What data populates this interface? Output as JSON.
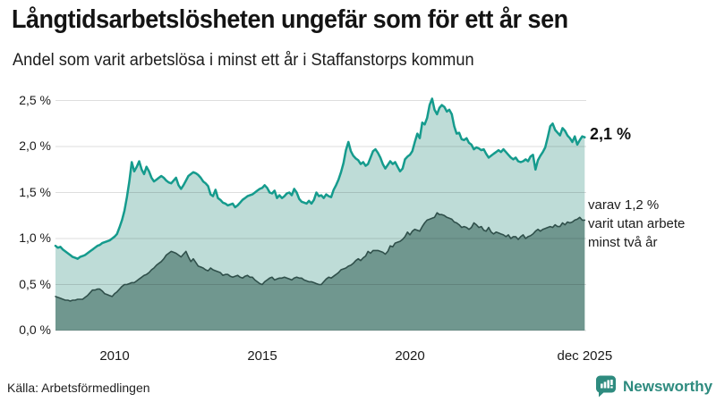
{
  "header": {
    "title": "Långtidsarbetslösheten ungefär som för ett år sen",
    "subtitle": "Andel som varit arbetslösa i minst ett år i Staffanstorps kommun"
  },
  "annotations": {
    "latest_value": "2,1 %",
    "two_year_lines": [
      "varav 1,2 %",
      "varit utan arbete",
      "minst två år"
    ]
  },
  "footer": {
    "source": "Källa: Arbetsförmedlingen",
    "brand": "Newsworthy"
  },
  "colors": {
    "accent_line": "#159b8d",
    "accent_fill": "#bedcd7",
    "dark_line": "#30504b",
    "dark_fill": "#70978f",
    "brand_teal": "#2e8b7f",
    "grid": "rgba(0,0,0,0.13)",
    "text": "#1a1a1a"
  },
  "chart_data": {
    "type": "area",
    "title": "Långtidsarbetslösheten ungefär som för ett år sen",
    "subtitle": "Andel som varit arbetslösa i minst ett år i Staffanstorps kommun",
    "unit": "%",
    "x_start_year": 2008.0,
    "points_per_year": 12,
    "x_end_label": "dec 2025",
    "y_axis": {
      "range": [
        0,
        2.5
      ],
      "grid": true,
      "ticks": [
        {
          "label": "0,0 %",
          "value": 0.0
        },
        {
          "label": "0,5 %",
          "value": 0.5
        },
        {
          "label": "1,0 %",
          "value": 1.0
        },
        {
          "label": "1,5 %",
          "value": 1.5
        },
        {
          "label": "2,0 %",
          "value": 2.0
        },
        {
          "label": "2,5 %",
          "value": 2.5
        }
      ]
    },
    "x_axis": {
      "ticks": [
        {
          "label": "2010",
          "year": 2010
        },
        {
          "label": "2015",
          "year": 2015
        },
        {
          "label": "2020",
          "year": 2020
        },
        {
          "label": "dec 2025",
          "year": 2025.92
        }
      ]
    },
    "series": [
      {
        "name": "Arbetslösa minst ett år",
        "latest_value": 2.1,
        "line_color": "#159b8d",
        "fill_color": "#bedcd7",
        "line_width": 2.5,
        "values": [
          0.92,
          0.9,
          0.91,
          0.88,
          0.86,
          0.84,
          0.82,
          0.8,
          0.79,
          0.78,
          0.8,
          0.81,
          0.82,
          0.84,
          0.86,
          0.88,
          0.9,
          0.92,
          0.93,
          0.95,
          0.96,
          0.97,
          0.98,
          1.0,
          1.02,
          1.05,
          1.12,
          1.2,
          1.3,
          1.45,
          1.62,
          1.83,
          1.73,
          1.78,
          1.84,
          1.75,
          1.7,
          1.78,
          1.73,
          1.66,
          1.62,
          1.64,
          1.66,
          1.68,
          1.66,
          1.63,
          1.61,
          1.6,
          1.63,
          1.66,
          1.58,
          1.54,
          1.58,
          1.63,
          1.68,
          1.7,
          1.72,
          1.71,
          1.69,
          1.66,
          1.62,
          1.6,
          1.57,
          1.48,
          1.46,
          1.53,
          1.44,
          1.42,
          1.39,
          1.38,
          1.36,
          1.37,
          1.38,
          1.34,
          1.36,
          1.39,
          1.42,
          1.44,
          1.46,
          1.47,
          1.48,
          1.5,
          1.52,
          1.54,
          1.55,
          1.58,
          1.55,
          1.5,
          1.49,
          1.52,
          1.44,
          1.47,
          1.44,
          1.46,
          1.49,
          1.5,
          1.47,
          1.54,
          1.5,
          1.43,
          1.4,
          1.39,
          1.38,
          1.41,
          1.38,
          1.42,
          1.5,
          1.46,
          1.47,
          1.44,
          1.48,
          1.46,
          1.45,
          1.53,
          1.58,
          1.64,
          1.72,
          1.82,
          1.96,
          2.05,
          1.95,
          1.9,
          1.87,
          1.85,
          1.81,
          1.83,
          1.79,
          1.81,
          1.88,
          1.95,
          1.97,
          1.93,
          1.88,
          1.81,
          1.76,
          1.8,
          1.84,
          1.81,
          1.83,
          1.78,
          1.73,
          1.76,
          1.86,
          1.89,
          1.91,
          1.95,
          2.05,
          2.14,
          2.09,
          2.26,
          2.24,
          2.31,
          2.45,
          2.52,
          2.4,
          2.35,
          2.42,
          2.45,
          2.43,
          2.38,
          2.4,
          2.35,
          2.22,
          2.14,
          2.15,
          2.08,
          2.07,
          2.09,
          2.04,
          2.02,
          1.97,
          1.99,
          1.98,
          1.96,
          1.97,
          1.92,
          1.88,
          1.9,
          1.92,
          1.94,
          1.96,
          1.94,
          1.97,
          1.94,
          1.91,
          1.88,
          1.86,
          1.88,
          1.84,
          1.83,
          1.84,
          1.86,
          1.84,
          1.89,
          1.91,
          1.75,
          1.85,
          1.9,
          1.94,
          1.99,
          2.1,
          2.22,
          2.25,
          2.18,
          2.15,
          2.12,
          2.2,
          2.17,
          2.12,
          2.09,
          2.05,
          2.11,
          2.02,
          2.07,
          2.11,
          2.1
        ]
      },
      {
        "name": "varav utan arbete minst två år",
        "latest_value": 1.2,
        "line_color": "#30504b",
        "fill_color": "#70978f",
        "line_width": 1.6,
        "values": [
          0.37,
          0.36,
          0.35,
          0.34,
          0.33,
          0.33,
          0.32,
          0.33,
          0.33,
          0.34,
          0.34,
          0.34,
          0.36,
          0.38,
          0.41,
          0.44,
          0.44,
          0.45,
          0.45,
          0.43,
          0.4,
          0.39,
          0.38,
          0.37,
          0.4,
          0.42,
          0.45,
          0.48,
          0.5,
          0.5,
          0.51,
          0.52,
          0.52,
          0.54,
          0.56,
          0.58,
          0.6,
          0.61,
          0.63,
          0.66,
          0.68,
          0.71,
          0.73,
          0.75,
          0.78,
          0.82,
          0.84,
          0.86,
          0.85,
          0.84,
          0.82,
          0.8,
          0.83,
          0.86,
          0.8,
          0.75,
          0.78,
          0.74,
          0.7,
          0.69,
          0.68,
          0.66,
          0.65,
          0.68,
          0.66,
          0.65,
          0.64,
          0.63,
          0.6,
          0.61,
          0.61,
          0.59,
          0.58,
          0.59,
          0.6,
          0.58,
          0.57,
          0.59,
          0.6,
          0.58,
          0.58,
          0.55,
          0.53,
          0.51,
          0.5,
          0.53,
          0.55,
          0.57,
          0.58,
          0.55,
          0.56,
          0.57,
          0.57,
          0.58,
          0.57,
          0.56,
          0.55,
          0.57,
          0.58,
          0.57,
          0.57,
          0.55,
          0.54,
          0.53,
          0.53,
          0.52,
          0.51,
          0.5,
          0.5,
          0.53,
          0.56,
          0.58,
          0.57,
          0.59,
          0.61,
          0.63,
          0.66,
          0.67,
          0.68,
          0.7,
          0.71,
          0.73,
          0.76,
          0.78,
          0.76,
          0.79,
          0.81,
          0.86,
          0.84,
          0.87,
          0.87,
          0.87,
          0.86,
          0.85,
          0.83,
          0.86,
          0.92,
          0.91,
          0.95,
          0.96,
          0.97,
          0.99,
          1.02,
          1.07,
          1.04,
          1.08,
          1.1,
          1.09,
          1.08,
          1.13,
          1.17,
          1.2,
          1.21,
          1.22,
          1.23,
          1.28,
          1.26,
          1.26,
          1.25,
          1.23,
          1.22,
          1.21,
          1.18,
          1.17,
          1.15,
          1.12,
          1.13,
          1.12,
          1.1,
          1.12,
          1.17,
          1.15,
          1.12,
          1.13,
          1.09,
          1.08,
          1.12,
          1.07,
          1.05,
          1.07,
          1.06,
          1.05,
          1.04,
          1.02,
          1.04,
          1.0,
          1.02,
          1.02,
          0.99,
          1.02,
          1.04,
          1.0,
          1.02,
          1.03,
          1.05,
          1.08,
          1.1,
          1.08,
          1.1,
          1.11,
          1.12,
          1.13,
          1.12,
          1.15,
          1.13,
          1.13,
          1.17,
          1.15,
          1.18,
          1.17,
          1.18,
          1.2,
          1.21,
          1.23,
          1.2,
          1.2
        ]
      }
    ]
  }
}
